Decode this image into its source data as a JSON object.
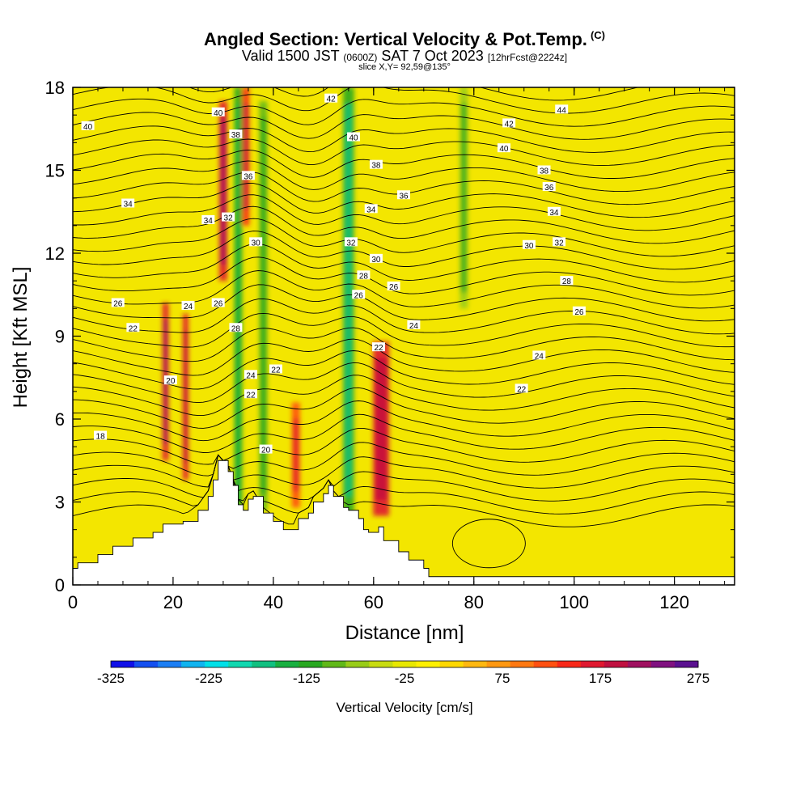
{
  "header": {
    "title": "Angled Section: Vertical Velocity & Pot.Temp.",
    "title_mark": "(C)",
    "line2_a": "Valid 1500 JST",
    "line2_b": "(0600Z)",
    "line2_c": "SAT 7 Oct 2023",
    "line2_d": "[12hrFcst@2224z]",
    "line3": "slice X,Y= 92,59@135°"
  },
  "chart_data": {
    "type": "heatmap",
    "title": "Angled Section: Vertical Velocity & Pot.Temp.",
    "xlabel": "Distance [nm]",
    "ylabel": "Height [Kft MSL]",
    "xlim": [
      0,
      132
    ],
    "ylim": [
      0,
      18
    ],
    "x_ticks": [
      0,
      20,
      40,
      60,
      80,
      100,
      120
    ],
    "x_tick_labels": [
      "0",
      "20",
      "40",
      "60",
      "80",
      "100",
      "120"
    ],
    "y_ticks": [
      0,
      3,
      6,
      9,
      12,
      15,
      18
    ],
    "y_tick_labels": [
      "0",
      "3",
      "6",
      "9",
      "12",
      "15",
      "18"
    ],
    "background_color": "#f3e600",
    "terrain_profile": {
      "x": [
        0,
        1,
        5,
        8,
        12,
        16,
        18,
        22,
        25,
        27,
        28,
        29,
        31,
        32,
        33,
        34,
        35,
        36,
        38,
        40,
        42,
        44,
        45,
        47,
        48,
        50,
        51,
        52,
        54,
        55,
        57,
        58,
        59,
        61,
        62,
        65,
        67,
        70,
        71,
        132
      ],
      "height": [
        0.6,
        0.8,
        1.1,
        1.4,
        1.7,
        1.9,
        2.2,
        2.3,
        2.7,
        3.2,
        3.8,
        4.5,
        4.1,
        3.6,
        2.9,
        2.7,
        3.1,
        3.2,
        2.6,
        2.3,
        2.0,
        2.0,
        2.4,
        2.6,
        3.0,
        3.3,
        3.6,
        3.2,
        2.8,
        2.7,
        2.4,
        2.0,
        1.9,
        2.1,
        1.6,
        1.2,
        0.9,
        0.6,
        0.3,
        0.3
      ]
    },
    "vertical_velocity_features": [
      {
        "x": 18.5,
        "y_range": [
          4.5,
          10.2
        ],
        "width": 1.2,
        "value": 175
      },
      {
        "x": 22.5,
        "y_range": [
          3.8,
          9.8
        ],
        "width": 1.1,
        "value": 160
      },
      {
        "x": 30,
        "y_range": [
          11,
          17.5
        ],
        "width": 1.6,
        "value": 175
      },
      {
        "x": 34.5,
        "y_range": [
          13,
          18
        ],
        "width": 1.4,
        "value": 140
      },
      {
        "x": 44.5,
        "y_range": [
          2.8,
          6.6
        ],
        "width": 1.6,
        "value": 120
      },
      {
        "x": 61.5,
        "y_range": [
          2.5,
          8.8
        ],
        "width": 3.2,
        "value": 160
      },
      {
        "x": 33,
        "y_range": [
          2.5,
          18
        ],
        "width": 1.6,
        "value": -110
      },
      {
        "x": 38,
        "y_range": [
          2.7,
          17.5
        ],
        "width": 1.6,
        "value": -90
      },
      {
        "x": 55,
        "y_range": [
          2.6,
          18
        ],
        "width": 2.2,
        "value": -120
      },
      {
        "x": 78,
        "y_range": [
          10,
          18
        ],
        "width": 1.6,
        "value": -70
      }
    ],
    "potential_temperature_contours": [
      {
        "value": "18",
        "label_x": 5.5,
        "label_y": 5.4
      },
      {
        "value": "20",
        "label_x": 19.5,
        "label_y": 7.4
      },
      {
        "value": "20",
        "label_x": 38.5,
        "label_y": 4.9
      },
      {
        "value": "22",
        "label_x": 12,
        "label_y": 9.3
      },
      {
        "value": "22",
        "label_x": 35.5,
        "label_y": 6.9
      },
      {
        "value": "22",
        "label_x": 40.5,
        "label_y": 7.8
      },
      {
        "value": "22",
        "label_x": 61,
        "label_y": 8.6
      },
      {
        "value": "22",
        "label_x": 89.5,
        "label_y": 7.1
      },
      {
        "value": "24",
        "label_x": 23,
        "label_y": 10.1
      },
      {
        "value": "24",
        "label_x": 35.5,
        "label_y": 7.6
      },
      {
        "value": "24",
        "label_x": 68,
        "label_y": 9.4
      },
      {
        "value": "24",
        "label_x": 93,
        "label_y": 8.3
      },
      {
        "value": "26",
        "label_x": 9,
        "label_y": 10.2
      },
      {
        "value": "26",
        "label_x": 29,
        "label_y": 10.2
      },
      {
        "value": "26",
        "label_x": 57,
        "label_y": 10.5
      },
      {
        "value": "26",
        "label_x": 64,
        "label_y": 10.8
      },
      {
        "value": "26",
        "label_x": 101,
        "label_y": 9.9
      },
      {
        "value": "28",
        "label_x": 58,
        "label_y": 11.2
      },
      {
        "value": "28",
        "label_x": 98.5,
        "label_y": 11.0
      },
      {
        "value": "28",
        "label_x": 32.5,
        "label_y": 9.3
      },
      {
        "value": "30",
        "label_x": 36.5,
        "label_y": 12.4
      },
      {
        "value": "30",
        "label_x": 60.5,
        "label_y": 11.8
      },
      {
        "value": "30",
        "label_x": 91,
        "label_y": 12.3
      },
      {
        "value": "32",
        "label_x": 31,
        "label_y": 13.3
      },
      {
        "value": "32",
        "label_x": 55.5,
        "label_y": 12.4
      },
      {
        "value": "32",
        "label_x": 97,
        "label_y": 12.4
      },
      {
        "value": "34",
        "label_x": 27,
        "label_y": 13.2
      },
      {
        "value": "34",
        "label_x": 11,
        "label_y": 13.8
      },
      {
        "value": "34",
        "label_x": 59.5,
        "label_y": 13.6
      },
      {
        "value": "34",
        "label_x": 96,
        "label_y": 13.5
      },
      {
        "value": "36",
        "label_x": 35,
        "label_y": 14.8
      },
      {
        "value": "36",
        "label_x": 66,
        "label_y": 14.1
      },
      {
        "value": "36",
        "label_x": 95,
        "label_y": 14.4
      },
      {
        "value": "38",
        "label_x": 32.5,
        "label_y": 16.3
      },
      {
        "value": "38",
        "label_x": 60.5,
        "label_y": 15.2
      },
      {
        "value": "38",
        "label_x": 94,
        "label_y": 15.0
      },
      {
        "value": "40",
        "label_x": 3,
        "label_y": 16.6
      },
      {
        "value": "40",
        "label_x": 29,
        "label_y": 17.1
      },
      {
        "value": "40",
        "label_x": 56,
        "label_y": 16.2
      },
      {
        "value": "40",
        "label_x": 86,
        "label_y": 15.8
      },
      {
        "value": "42",
        "label_x": 51.5,
        "label_y": 17.6
      },
      {
        "value": "42",
        "label_x": 87,
        "label_y": 16.7
      },
      {
        "value": "44",
        "label_x": 97.5,
        "label_y": 17.2
      }
    ],
    "colorbar": {
      "title": "Vertical Velocity [cm/s]",
      "tick_labels": [
        "-325",
        "-225",
        "-125",
        "-25",
        "75",
        "175",
        "275"
      ],
      "tick_values": [
        -325,
        -225,
        -125,
        -25,
        75,
        175,
        275
      ],
      "min": -325,
      "max": 275,
      "colors": [
        "#1010e8",
        "#1450f0",
        "#1b7ef4",
        "#10b4f0",
        "#00e0e8",
        "#10d8b0",
        "#10c080",
        "#18b040",
        "#28a820",
        "#60b818",
        "#98cc18",
        "#c8dc10",
        "#e8e800",
        "#fff000",
        "#ffd800",
        "#ffb810",
        "#ff9810",
        "#ff7810",
        "#ff5010",
        "#f82818",
        "#e01830",
        "#c01040",
        "#a01060",
        "#801080",
        "#5a1090"
      ]
    }
  }
}
